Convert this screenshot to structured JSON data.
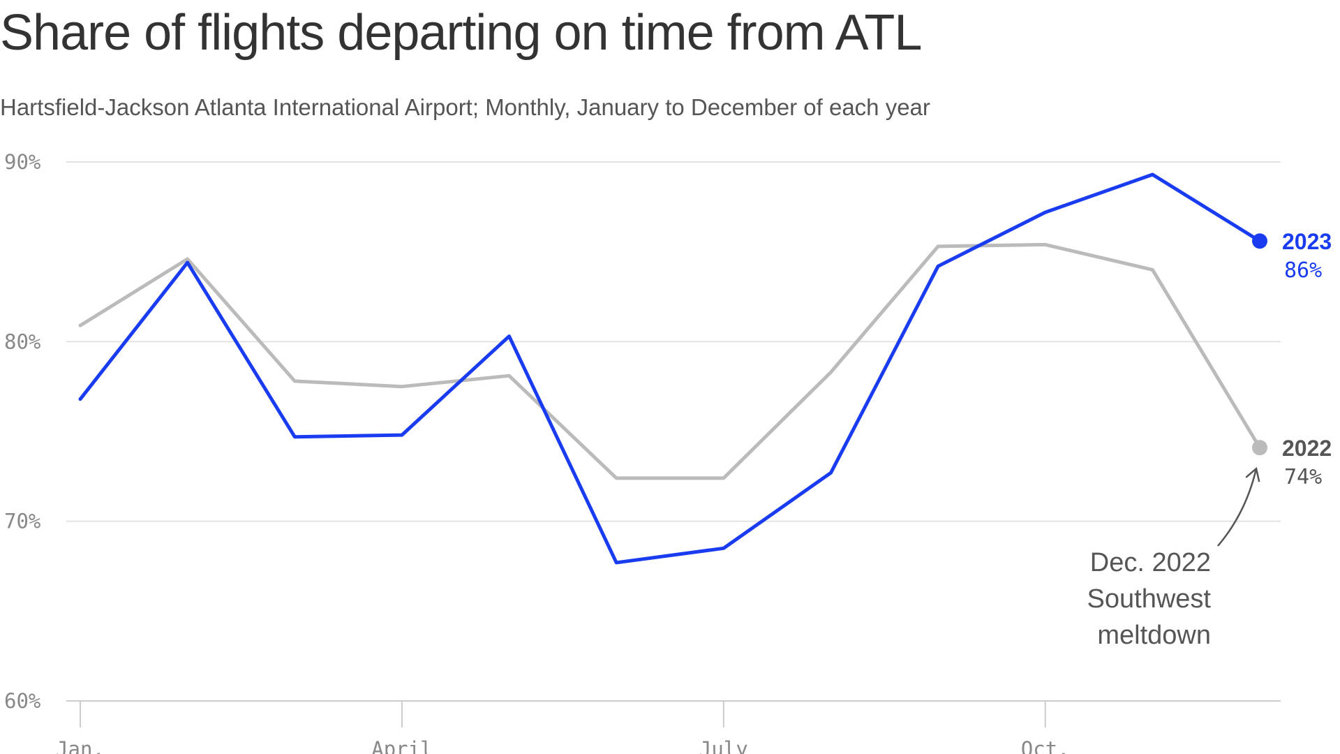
{
  "chart_data": {
    "type": "line",
    "title": "Share of flights departing on time from ATL",
    "subtitle": "Hartsfield-Jackson Atlanta International Airport; Monthly, January to December of each year",
    "x": [
      1,
      2,
      3,
      4,
      5,
      6,
      7,
      8,
      9,
      10,
      11,
      12
    ],
    "xticks": [
      {
        "x": 1,
        "label": "Jan."
      },
      {
        "x": 4,
        "label": "April"
      },
      {
        "x": 7,
        "label": "July"
      },
      {
        "x": 10,
        "label": "Oct."
      }
    ],
    "ylim": [
      60,
      90
    ],
    "yticks": [
      {
        "y": 90,
        "label": "90%"
      },
      {
        "y": 80,
        "label": "80%"
      },
      {
        "y": 70,
        "label": "70%"
      },
      {
        "y": 60,
        "label": "60%"
      }
    ],
    "grid": true,
    "series": [
      {
        "name": "2022",
        "end_label": "74%",
        "color": "#bbbbbb",
        "label_color": "#555555",
        "values": [
          80.9,
          84.6,
          77.8,
          77.5,
          78.1,
          72.4,
          72.4,
          78.3,
          85.3,
          85.4,
          84.0,
          74.1
        ]
      },
      {
        "name": "2023",
        "end_label": "86%",
        "color": "#1a3cf0",
        "label_color": "#1a3cf0",
        "values": [
          76.8,
          84.4,
          74.7,
          74.8,
          80.3,
          67.7,
          68.5,
          72.7,
          84.2,
          87.2,
          89.3,
          85.6
        ]
      }
    ],
    "annotation": {
      "lines": [
        "Dec. 2022",
        "Southwest",
        "meltdown"
      ],
      "target_series": "2022",
      "target_x": 12
    }
  }
}
